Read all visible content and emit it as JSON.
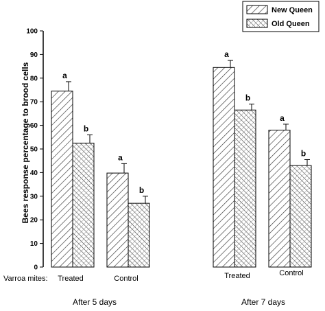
{
  "chart_data": {
    "type": "bar",
    "ylabel": "Bees response percentage to brood cells",
    "ylim": [
      0,
      100
    ],
    "yticks": [
      0,
      10,
      20,
      30,
      40,
      50,
      60,
      70,
      80,
      90,
      100
    ],
    "row_label": "Varroa mites:",
    "categories": [
      "Treated",
      "Control",
      "Treated",
      "Control"
    ],
    "groups": [
      "After 5 days",
      "After 7 days"
    ],
    "legend_position": "top-right",
    "series": [
      {
        "name": "New Queen",
        "pattern": "forward-hatch",
        "values": [
          74.5,
          39.8,
          84.5,
          58.0
        ],
        "errors": [
          4.0,
          4.0,
          3.0,
          2.5
        ],
        "significance": [
          "a",
          "a",
          "a",
          "a"
        ]
      },
      {
        "name": "Old Queen",
        "pattern": "cross-hatch",
        "values": [
          52.5,
          27.0,
          66.5,
          43.0
        ],
        "errors": [
          3.5,
          3.0,
          2.5,
          2.5
        ],
        "significance": [
          "b",
          "b",
          "b",
          "b"
        ]
      }
    ]
  }
}
